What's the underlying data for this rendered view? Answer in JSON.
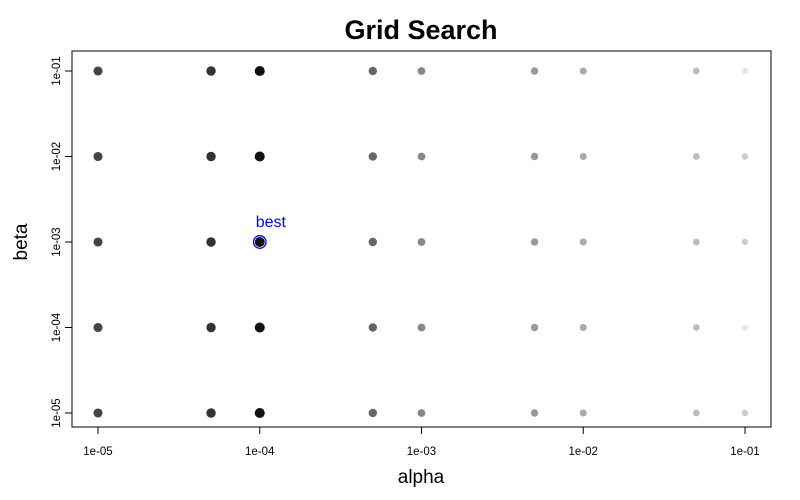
{
  "chart_data": {
    "type": "scatter",
    "title": "Grid Search",
    "xlabel": "alpha",
    "ylabel": "beta",
    "x_scale": "log",
    "y_scale": "log",
    "xlim": [
      1e-05,
      0.1
    ],
    "ylim": [
      1e-05,
      0.1
    ],
    "grid": false,
    "legend": "none",
    "x_ticks": [
      {
        "value": 1e-05,
        "label": "1e-05"
      },
      {
        "value": 0.0001,
        "label": "1e-04"
      },
      {
        "value": 0.001,
        "label": "1e-03"
      },
      {
        "value": 0.01,
        "label": "1e-02"
      },
      {
        "value": 0.1,
        "label": "1e-01"
      }
    ],
    "y_ticks": [
      {
        "value": 1e-05,
        "label": "1e-05"
      },
      {
        "value": 0.0001,
        "label": "1e-04"
      },
      {
        "value": 0.001,
        "label": "1e-03"
      },
      {
        "value": 0.01,
        "label": "1e-02"
      },
      {
        "value": 0.1,
        "label": "1e-01"
      }
    ],
    "alpha_values": [
      1e-05,
      5e-05,
      0.0001,
      0.0005,
      0.001,
      0.005,
      0.01,
      0.05,
      0.1
    ],
    "beta_values": [
      0.1,
      0.01,
      0.001,
      0.0001,
      1e-05
    ],
    "point_shade": [
      [
        "#444444",
        "#333333",
        "#111111",
        "#666666",
        "#888888",
        "#999999",
        "#aaaaaa",
        "#bbbbbb",
        "#e5e5e5"
      ],
      [
        "#444444",
        "#333333",
        "#111111",
        "#666666",
        "#888888",
        "#999999",
        "#aaaaaa",
        "#bbbbbb",
        "#cccccc"
      ],
      [
        "#444444",
        "#333333",
        "#111111",
        "#666666",
        "#888888",
        "#999999",
        "#aaaaaa",
        "#bbbbbb",
        "#cccccc"
      ],
      [
        "#444444",
        "#333333",
        "#111111",
        "#666666",
        "#888888",
        "#999999",
        "#aaaaaa",
        "#bbbbbb",
        "#e5e5e5"
      ],
      [
        "#444444",
        "#333333",
        "#111111",
        "#666666",
        "#888888",
        "#999999",
        "#aaaaaa",
        "#bbbbbb",
        "#cccccc"
      ]
    ],
    "best_point": {
      "alpha": 0.0001,
      "beta": 0.001
    },
    "annotation": {
      "text": "best",
      "color": "#0000ff"
    }
  }
}
